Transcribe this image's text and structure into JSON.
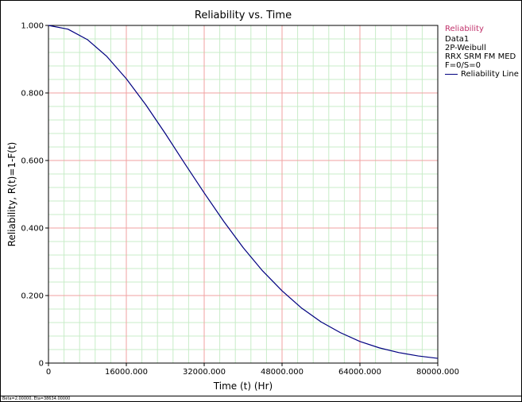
{
  "chart_data": {
    "type": "line",
    "title": "Reliability vs. Time",
    "xlabel": "Time (t) (Hr)",
    "ylabel": "Reliability, R(t)=1-F(t)",
    "xlim": [
      0,
      80000
    ],
    "ylim": [
      0,
      1
    ],
    "x_ticks": [
      0,
      16000,
      32000,
      48000,
      64000,
      80000
    ],
    "x_tick_labels": [
      "0",
      "16000.000",
      "32000.000",
      "48000.000",
      "64000.000",
      "80000.000"
    ],
    "y_ticks": [
      0,
      0.2,
      0.4,
      0.6,
      0.8,
      1.0
    ],
    "y_tick_labels": [
      "0",
      "0.200",
      "0.400",
      "0.600",
      "0.800",
      "1.000"
    ],
    "grid": true,
    "legend_position": "right",
    "series": [
      {
        "name": "Reliability Line",
        "color": "#000080",
        "distribution": "2P-Weibull",
        "beta": 2.0,
        "eta": 38634,
        "x": [
          0,
          4000,
          8000,
          12000,
          16000,
          20000,
          24000,
          28000,
          32000,
          36000,
          40000,
          44000,
          48000,
          52000,
          56000,
          60000,
          64000,
          68000,
          72000,
          76000,
          80000
        ],
        "y": [
          1.0,
          0.989,
          0.958,
          0.908,
          0.842,
          0.765,
          0.68,
          0.591,
          0.504,
          0.42,
          0.342,
          0.273,
          0.214,
          0.163,
          0.122,
          0.09,
          0.064,
          0.045,
          0.031,
          0.021,
          0.014
        ]
      }
    ]
  },
  "legend": {
    "header": "Reliability",
    "lines": [
      "Data1",
      "2P-Weibull",
      "RRX SRM FM MED",
      "F=0/S=0"
    ],
    "entry_label": "Reliability Line"
  },
  "status_bar": {
    "text": "Beta=2.00000, Eta=38634.00000"
  },
  "colors": {
    "major_grid": "#f2a0a0",
    "minor_grid": "#c8ecc8",
    "curve": "#000080",
    "legend_header": "#c0306a"
  }
}
